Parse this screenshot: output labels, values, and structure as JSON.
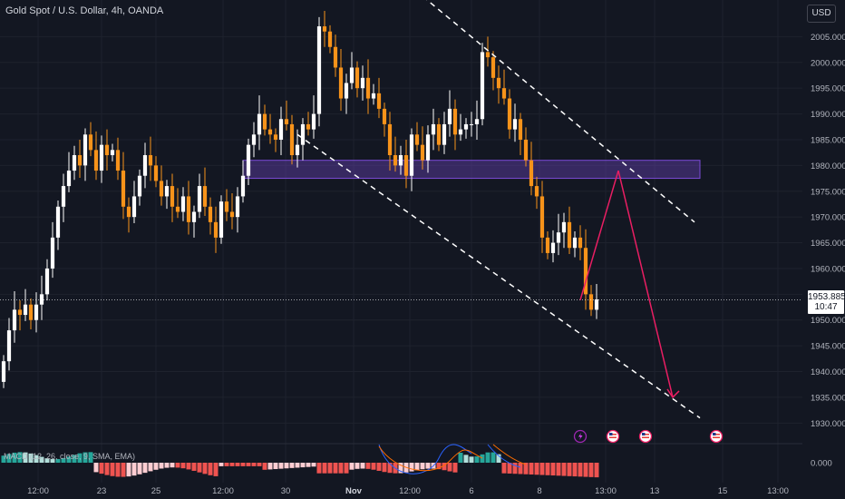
{
  "header": {
    "title": "Gold Spot / U.S. Dollar, 4h, OANDA",
    "currency_button": "USD"
  },
  "last_price": {
    "price": "1953.885",
    "countdown": "10:47",
    "value": 1953.885
  },
  "indicator": {
    "label": "MACD (12, 26, close, 9, SMA, EMA)",
    "zero_label": "0.000"
  },
  "chart_data": {
    "type": "candlestick",
    "title": "Gold Spot / U.S. Dollar, 4h, OANDA",
    "ylim": [
      1929,
      2010
    ],
    "yticks": [
      1930,
      1935,
      1940,
      1945,
      1950,
      1955,
      1960,
      1965,
      1970,
      1975,
      1980,
      1985,
      1990,
      1995,
      2000,
      2005
    ],
    "ytick_labels": [
      "1930.000",
      "1935.000",
      "1940.000",
      "1945.000",
      "1950.000",
      "1955.000",
      "1960.000",
      "1965.000",
      "1970.000",
      "1975.000",
      "1980.000",
      "1985.000",
      "1990.000",
      "1995.000",
      "2000.000",
      "2005.000"
    ],
    "xtick_labels": [
      "12:00",
      "23",
      "25",
      "12:00",
      "30",
      "Nov",
      "12:00",
      "6",
      "8",
      "13:00",
      "13",
      "15",
      "13:00"
    ],
    "colors": {
      "up": "#ffffff",
      "down": "#f7931a",
      "zone": "#7b4bd6",
      "arrow": "#e91e63",
      "trend": "#ffffff",
      "hist_pos": "#26a69a",
      "hist_pos_light": "#b2dfdb",
      "hist_neg": "#ef5350",
      "hist_neg_light": "#ffcdd2",
      "macd_line": "#2962ff",
      "signal_line": "#ff6d00"
    },
    "closes": [
      1942,
      1948,
      1952,
      1951,
      1953,
      1950,
      1953,
      1955,
      1960,
      1966,
      1972,
      1976,
      1979,
      1982,
      1980,
      1986,
      1983,
      1979,
      1984,
      1982,
      1983,
      1979,
      1972,
      1970,
      1974,
      1978,
      1982,
      1980,
      1977,
      1974,
      1976,
      1972,
      1971,
      1974,
      1969,
      1971,
      1976,
      1972,
      1969,
      1966,
      1973,
      1971,
      1970,
      1974,
      1978,
      1984,
      1986,
      1990,
      1987,
      1986,
      1985,
      1989,
      1988,
      1982,
      1984,
      1988,
      1987,
      1990,
      2007,
      2006,
      2003,
      1999,
      1993,
      1996,
      1999,
      1995,
      1997,
      1993,
      1994,
      1991,
      1988,
      1982,
      1980,
      1982,
      1978,
      1986,
      1984,
      1981,
      1986,
      1988,
      1984,
      1988,
      1991,
      1986,
      1987,
      1988,
      1988,
      1989,
      2002,
      2001,
      1997,
      1995,
      1993,
      1987,
      1989,
      1985,
      1981,
      1976,
      1974,
      1966,
      1963,
      1965,
      1967,
      1969,
      1964,
      1966,
      1964,
      1955,
      1952,
      1954
    ],
    "trendlines": [
      {
        "from": {
          "bar": 70,
          "price": 2019
        },
        "to": {
          "bar": 127,
          "price": 1969
        }
      },
      {
        "from": {
          "bar": 54,
          "price": 1986
        },
        "to": {
          "bar": 128,
          "price": 1931
        }
      }
    ],
    "resistance_zone": {
      "from_bar": 44,
      "to_bar": 128,
      "low": 1977.5,
      "high": 1981
    },
    "projection": [
      {
        "bar": 106,
        "price": 1953.885
      },
      {
        "bar": 113,
        "price": 1979
      },
      {
        "bar": 123,
        "price": 1935
      }
    ],
    "events": [
      {
        "bar": 106,
        "kind": "lightning"
      },
      {
        "bar": 112,
        "kind": "us-flag"
      },
      {
        "bar": 118,
        "kind": "us-flag"
      },
      {
        "bar": 131,
        "kind": "us-flag"
      }
    ]
  }
}
